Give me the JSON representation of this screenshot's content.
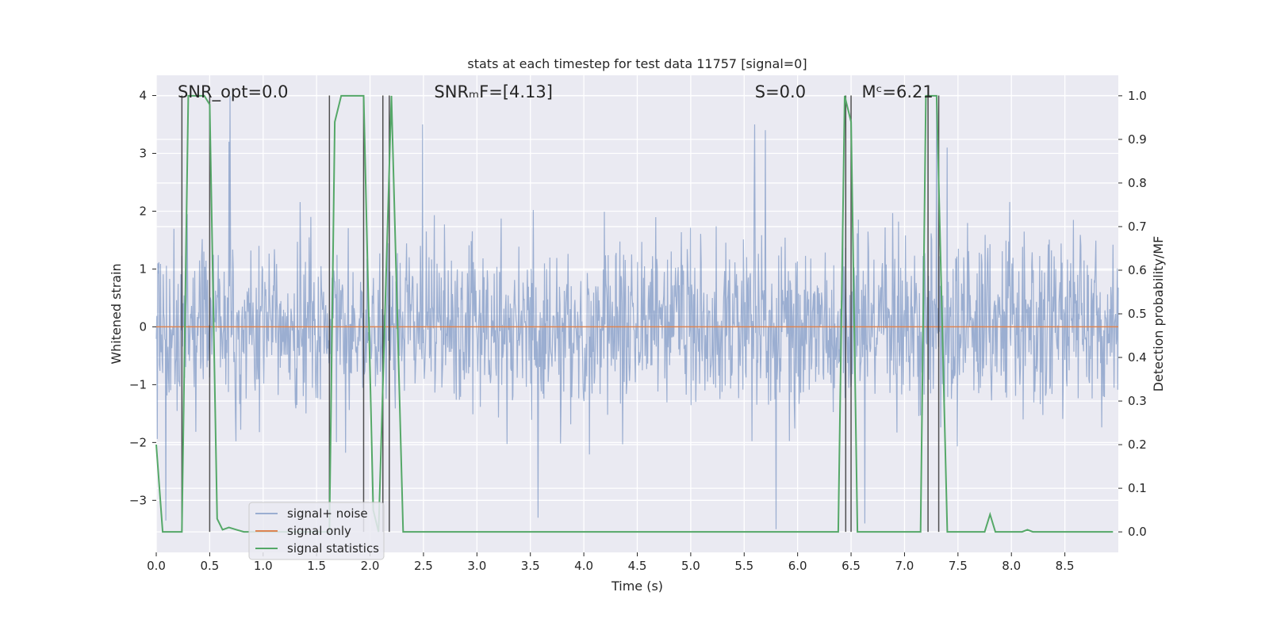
{
  "chart_data": {
    "type": "line",
    "title": "stats at each timestep for test data 11757 [signal=0]",
    "xlabel": "Time (s)",
    "ylabel_left": "Whitened strain",
    "ylabel_right": "Detection probability/MF",
    "xlim": [
      0,
      9.0
    ],
    "ylim_left": [
      -3.9,
      4.35
    ],
    "ylim_right": [
      -0.047,
      1.047
    ],
    "xticks": [
      0.0,
      0.5,
      1.0,
      1.5,
      2.0,
      2.5,
      3.0,
      3.5,
      4.0,
      4.5,
      5.0,
      5.5,
      6.0,
      6.5,
      7.0,
      7.5,
      8.0,
      8.5
    ],
    "xtick_labels": [
      "0.0",
      "0.5",
      "1.0",
      "1.5",
      "2.0",
      "2.5",
      "3.0",
      "3.5",
      "4.0",
      "4.5",
      "5.0",
      "5.5",
      "6.0",
      "6.5",
      "7.0",
      "7.5",
      "8.0",
      "8.5"
    ],
    "yticks_left": [
      4,
      3,
      2,
      1,
      0,
      -1,
      -2,
      -3
    ],
    "ytick_labels_left": [
      "4",
      "3",
      "2",
      "1",
      "0",
      "−1",
      "−2",
      "−3"
    ],
    "yticks_right": [
      1.0,
      0.9,
      0.8,
      0.7,
      0.6,
      0.5,
      0.4,
      0.3,
      0.2,
      0.1,
      0.0
    ],
    "ytick_labels_right": [
      "1.0",
      "0.9",
      "0.8",
      "0.7",
      "0.6",
      "0.5",
      "0.4",
      "0.3",
      "0.2",
      "0.1",
      "0.0"
    ],
    "grid": true,
    "legend_position": "lower-left",
    "annotations": [
      {
        "name": "snr-opt",
        "text": "SNR_opt=0.0",
        "x": 0.2,
        "y": 4.05
      },
      {
        "name": "snr-mf",
        "text": "SNRₘF=[4.13]",
        "x": 2.6,
        "y": 4.05
      },
      {
        "name": "s-stat",
        "text": "S=0.0",
        "x": 5.6,
        "y": 4.05
      },
      {
        "name": "mc",
        "text": "Mᶜ=6.21",
        "x": 6.6,
        "y": 4.05
      }
    ],
    "noise": {
      "name": "signal+ noise",
      "color": "#4c72b0",
      "opacity": 0.5,
      "n_points": 1800,
      "std": 0.75,
      "peaks": [
        {
          "x": 0.69,
          "y": 4.0
        },
        {
          "x": 0.68,
          "y": 3.2
        },
        {
          "x": 2.49,
          "y": 3.5
        },
        {
          "x": 5.6,
          "y": 3.5
        },
        {
          "x": 5.7,
          "y": 3.4
        },
        {
          "x": 7.3,
          "y": 3.9
        },
        {
          "x": 7.4,
          "y": 3.1
        },
        {
          "x": 5.8,
          "y": -3.5
        },
        {
          "x": 6.63,
          "y": -3.4
        },
        {
          "x": 3.57,
          "y": -3.3
        },
        {
          "x": 0.09,
          "y": -3.35
        }
      ]
    },
    "signal_only": {
      "name": "signal only",
      "color": "#dd8452",
      "x": [
        0,
        9.0
      ],
      "y": [
        0,
        0
      ]
    },
    "signal_statistics": {
      "name": "signal statistics",
      "color": "#55a868",
      "x": [
        0.0,
        0.06,
        0.24,
        0.3,
        0.45,
        0.5,
        0.57,
        0.62,
        0.68,
        0.75,
        0.82,
        0.88,
        1.0,
        1.62,
        1.67,
        1.73,
        1.78,
        1.84,
        1.94,
        2.03,
        2.08,
        2.2,
        2.31,
        2.36,
        2.45,
        6.38,
        6.44,
        6.5,
        6.56,
        6.63,
        6.8,
        7.15,
        7.2,
        7.25,
        7.3,
        7.4,
        7.75,
        7.8,
        7.85,
        7.92,
        8.1,
        8.15,
        8.2,
        8.95
      ],
      "y": [
        0.2,
        0.0,
        0.0,
        1.0,
        1.0,
        0.98,
        0.03,
        0.005,
        0.01,
        0.005,
        0.0,
        0.0,
        0.0,
        0.0,
        0.94,
        1.0,
        1.0,
        1.0,
        1.0,
        0.05,
        0.0,
        1.0,
        0.0,
        0.0,
        0.0,
        0.0,
        1.0,
        0.94,
        0.0,
        0.0,
        0.0,
        0.0,
        1.0,
        1.0,
        1.0,
        0.0,
        0.0,
        0.04,
        0.0,
        0.0,
        0.0,
        0.005,
        0.0,
        0.0
      ]
    },
    "vertical_markers": {
      "color": "#333333",
      "x": [
        0.24,
        0.5,
        1.62,
        1.94,
        2.12,
        2.18,
        6.45,
        6.5,
        7.22,
        7.32
      ]
    }
  }
}
